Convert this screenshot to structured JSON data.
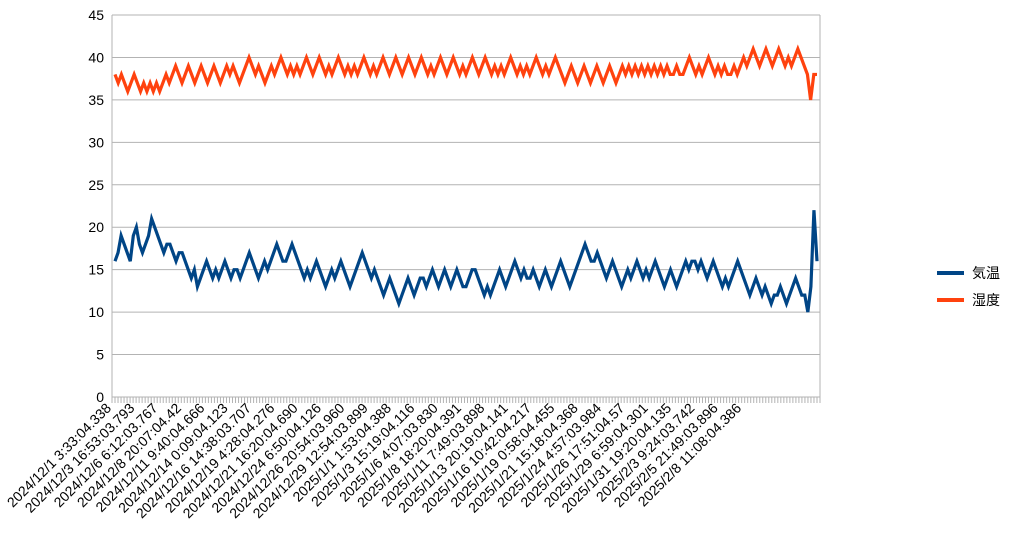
{
  "chart_data": {
    "type": "line",
    "title": "",
    "xlabel": "",
    "ylabel": "",
    "ylim": [
      0,
      45
    ],
    "yticks": [
      0,
      5,
      10,
      15,
      20,
      25,
      30,
      35,
      40,
      45
    ],
    "grid": "horizontal",
    "legend_position": "right",
    "x_tick_labels": [
      "2024/12/1 3:33:04.338",
      "2024/12/3 16:53:03.793",
      "2024/12/6 6:12:03.767",
      "2024/12/8 20:07:04.42",
      "2024/12/11 9:40:04.666",
      "2024/12/14 0:09:04.123",
      "2024/12/16 14:38:03.707",
      "2024/12/19 4:28:04.276",
      "2024/12/21 16:20:04.690",
      "2024/12/24 6:50:04.126",
      "2024/12/26 20:54:03.960",
      "2024/12/29 12:54:03.899",
      "2025/1/1 1:53:04.388",
      "2025/1/3 15:19:04.116",
      "2025/1/6 4:07:03.830",
      "2025/1/8 18:20:04.391",
      "2025/1/11 7:49:03.898",
      "2025/1/13 20:19:04.141",
      "2025/1/16 10:42:04.217",
      "2025/1/19 0:58:04.455",
      "2025/1/21 15:18:04.368",
      "2025/1/24 4:57:03.984",
      "2025/1/26 17:51:04.57",
      "2025/1/29 6:59:04.301",
      "2025/1/31 19:20:04.135",
      "2025/2/3 9:24:03.742",
      "2025/2/5 21:49:03.896",
      "2025/2/8 11:08:04.386"
    ],
    "series": [
      {
        "name": "気温",
        "color": "#004586",
        "values": [
          16,
          17,
          19,
          18,
          17,
          16,
          19,
          20,
          18,
          17,
          18,
          19,
          21,
          20,
          19,
          18,
          17,
          18,
          18,
          17,
          16,
          17,
          17,
          16,
          15,
          14,
          15,
          13,
          14,
          15,
          16,
          15,
          14,
          15,
          14,
          15,
          16,
          15,
          14,
          15,
          15,
          14,
          15,
          16,
          17,
          16,
          15,
          14,
          15,
          16,
          15,
          16,
          17,
          18,
          17,
          16,
          16,
          17,
          18,
          17,
          16,
          15,
          14,
          15,
          14,
          15,
          16,
          15,
          14,
          13,
          14,
          15,
          14,
          15,
          16,
          15,
          14,
          13,
          14,
          15,
          16,
          17,
          16,
          15,
          14,
          15,
          14,
          13,
          12,
          13,
          14,
          13,
          12,
          11,
          12,
          13,
          14,
          13,
          12,
          13,
          14,
          14,
          13,
          14,
          15,
          14,
          13,
          14,
          15,
          14,
          13,
          14,
          15,
          14,
          13,
          13,
          14,
          15,
          15,
          14,
          13,
          12,
          13,
          12,
          13,
          14,
          15,
          14,
          13,
          14,
          15,
          16,
          15,
          14,
          15,
          14,
          14,
          15,
          14,
          13,
          14,
          15,
          14,
          13,
          14,
          15,
          16,
          15,
          14,
          13,
          14,
          15,
          16,
          17,
          18,
          17,
          16,
          16,
          17,
          16,
          15,
          14,
          15,
          16,
          15,
          14,
          13,
          14,
          15,
          14,
          15,
          16,
          15,
          14,
          15,
          14,
          15,
          16,
          15,
          14,
          13,
          14,
          15,
          14,
          13,
          14,
          15,
          16,
          15,
          16,
          16,
          15,
          16,
          15,
          14,
          15,
          16,
          15,
          14,
          13,
          14,
          13,
          14,
          15,
          16,
          15,
          14,
          13,
          12,
          13,
          14,
          13,
          12,
          13,
          12,
          11,
          12,
          12,
          13,
          12,
          11,
          12,
          13,
          14,
          13,
          12,
          12,
          10,
          13,
          22,
          16
        ]
      },
      {
        "name": "湿度",
        "color": "#ff420e",
        "values": [
          38,
          37,
          38,
          37,
          36,
          37,
          38,
          37,
          36,
          37,
          36,
          37,
          36,
          37,
          36,
          37,
          38,
          37,
          38,
          39,
          38,
          37,
          38,
          39,
          38,
          37,
          38,
          39,
          38,
          37,
          38,
          39,
          38,
          37,
          38,
          39,
          38,
          39,
          38,
          37,
          38,
          39,
          40,
          39,
          38,
          39,
          38,
          37,
          38,
          39,
          38,
          39,
          40,
          39,
          38,
          39,
          38,
          39,
          38,
          39,
          40,
          39,
          38,
          39,
          40,
          39,
          38,
          39,
          38,
          39,
          40,
          39,
          38,
          39,
          38,
          39,
          38,
          39,
          40,
          39,
          38,
          39,
          38,
          39,
          40,
          39,
          38,
          39,
          40,
          39,
          38,
          39,
          40,
          39,
          38,
          39,
          40,
          39,
          38,
          39,
          38,
          39,
          40,
          39,
          38,
          39,
          40,
          39,
          38,
          39,
          38,
          39,
          40,
          39,
          38,
          39,
          40,
          39,
          38,
          39,
          38,
          39,
          38,
          39,
          40,
          39,
          38,
          39,
          38,
          39,
          38,
          39,
          40,
          39,
          38,
          39,
          38,
          39,
          40,
          39,
          38,
          37,
          38,
          39,
          38,
          37,
          38,
          39,
          38,
          37,
          38,
          39,
          38,
          37,
          38,
          39,
          38,
          37,
          38,
          39,
          38,
          39,
          38,
          39,
          38,
          39,
          38,
          39,
          38,
          39,
          38,
          39,
          38,
          39,
          38,
          38,
          39,
          38,
          38,
          39,
          40,
          39,
          38,
          39,
          38,
          39,
          40,
          39,
          38,
          39,
          38,
          39,
          38,
          38,
          39,
          38,
          39,
          40,
          39,
          40,
          41,
          40,
          39,
          40,
          41,
          40,
          39,
          40,
          41,
          40,
          39,
          40,
          39,
          40,
          41,
          40,
          39,
          38,
          35,
          38,
          38
        ]
      }
    ]
  }
}
